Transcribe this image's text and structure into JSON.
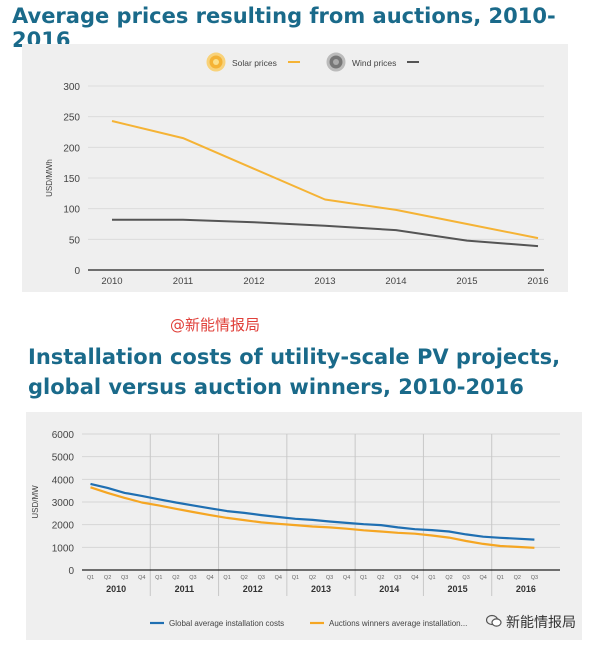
{
  "titles": {
    "chart1": "Average prices resulting from auctions, 2010-2016",
    "chart2_line1": "Installation costs of utility-scale PV projects,",
    "chart2_line2": "global versus auction winners, 2010-2016"
  },
  "watermarks": {
    "middle": "@新能情报局",
    "corner": "新能情报局"
  },
  "colors": {
    "title": "#1a6a8a",
    "solar": "#f5b335",
    "wind": "#555555",
    "global": "#1f6fb2",
    "auction": "#f5a623"
  },
  "chart_data": [
    {
      "type": "line",
      "ylabel": "USD/MWh",
      "x": [
        2010,
        2011,
        2012,
        2013,
        2014,
        2015,
        2016
      ],
      "x_tick_labels": [
        "2010",
        "2011",
        "2012",
        "2013",
        "2014",
        "2015",
        "2016"
      ],
      "ylim": [
        0,
        300
      ],
      "y_ticks": [
        0,
        50,
        100,
        150,
        200,
        250,
        300
      ],
      "series": [
        {
          "name": "Solar prices",
          "color": "#f5b335",
          "icon": "sun-icon",
          "values": [
            243,
            215,
            165,
            115,
            98,
            75,
            52
          ]
        },
        {
          "name": "Wind prices",
          "color": "#555555",
          "icon": "wind-icon",
          "values": [
            82,
            82,
            78,
            72,
            65,
            48,
            39
          ]
        }
      ],
      "grid": true,
      "legend": "top-center"
    },
    {
      "type": "line",
      "ylabel": "USD/MW",
      "ylim": [
        0,
        6000
      ],
      "y_ticks": [
        0,
        1000,
        2000,
        3000,
        4000,
        5000,
        6000
      ],
      "quarters": [
        "Q1",
        "Q2",
        "Q3",
        "Q4",
        "Q1",
        "Q2",
        "Q3",
        "Q4",
        "Q1",
        "Q2",
        "Q3",
        "Q4",
        "Q1",
        "Q2",
        "Q3",
        "Q4",
        "Q1",
        "Q2",
        "Q3",
        "Q4",
        "Q1",
        "Q2",
        "Q3",
        "Q4",
        "Q1",
        "Q2",
        "Q3"
      ],
      "years": [
        "2010",
        "2011",
        "2012",
        "2013",
        "2014",
        "2015",
        "2016"
      ],
      "series": [
        {
          "name": "Global average installation costs",
          "color": "#1f6fb2",
          "values": [
            3800,
            3620,
            3400,
            3270,
            3120,
            2980,
            2850,
            2720,
            2600,
            2520,
            2420,
            2340,
            2260,
            2210,
            2140,
            2080,
            2020,
            1980,
            1880,
            1800,
            1760,
            1700,
            1570,
            1470,
            1420,
            1380,
            1340
          ]
        },
        {
          "name": "Auctions winners average installation...",
          "color": "#f5a623",
          "values": [
            3650,
            3400,
            3180,
            2980,
            2850,
            2700,
            2560,
            2420,
            2300,
            2200,
            2100,
            2040,
            1980,
            1920,
            1880,
            1820,
            1750,
            1700,
            1640,
            1600,
            1520,
            1430,
            1280,
            1150,
            1060,
            1020,
            980
          ]
        }
      ],
      "grid": true,
      "legend": "bottom-center"
    }
  ]
}
